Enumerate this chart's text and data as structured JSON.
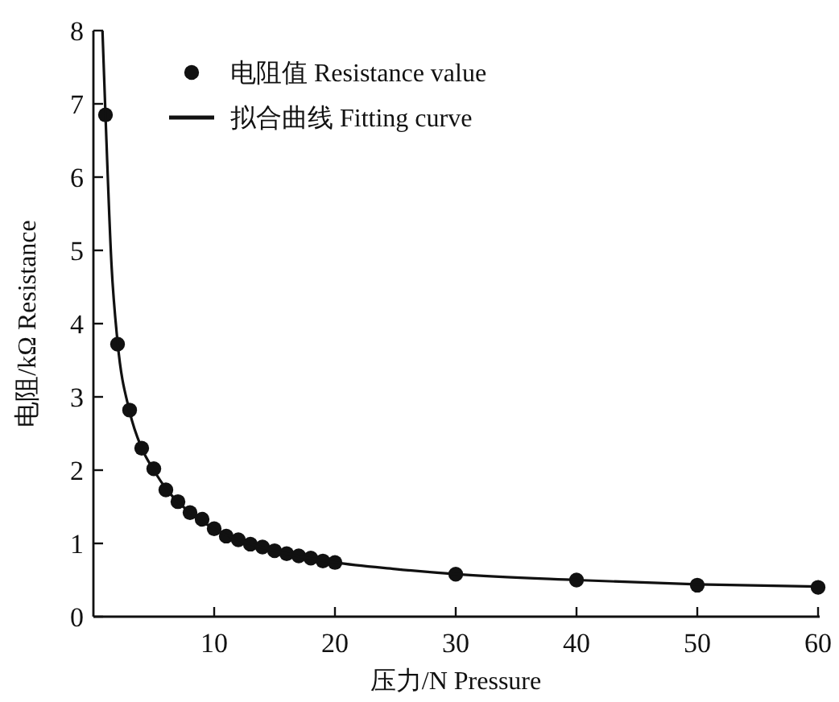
{
  "chart_data": {
    "type": "scatter",
    "xlabel": "压力/N  Pressure",
    "ylabel": "电阻/kΩ  Resistance",
    "xlim": [
      0,
      60
    ],
    "ylim": [
      0,
      8
    ],
    "xticks": [
      10,
      20,
      30,
      40,
      50,
      60
    ],
    "yticks": [
      0,
      1,
      2,
      3,
      4,
      5,
      6,
      7,
      8
    ],
    "grid": false,
    "legend": "top",
    "series": [
      {
        "name": "电阻值 Resistance value",
        "color": "#111111",
        "marker": "circle",
        "x": [
          1,
          2,
          3,
          4,
          5,
          6,
          7,
          8,
          9,
          10,
          11,
          12,
          13,
          14,
          15,
          16,
          17,
          18,
          19,
          20,
          30,
          40,
          50,
          60
        ],
        "values": [
          6.85,
          3.72,
          2.82,
          2.3,
          2.02,
          1.73,
          1.57,
          1.42,
          1.33,
          1.2,
          1.1,
          1.05,
          0.99,
          0.95,
          0.9,
          0.86,
          0.83,
          0.8,
          0.76,
          0.74,
          0.58,
          0.5,
          0.43,
          0.4
        ]
      },
      {
        "name": "拟合曲线 Fitting curve",
        "type": "line",
        "color": "#111111",
        "line_style": "solid",
        "marker": "none",
        "x": [
          0.75,
          1,
          1.5,
          2,
          3,
          4,
          5,
          6,
          8,
          10,
          12,
          15,
          20,
          25,
          30,
          40,
          50,
          60
        ],
        "values": [
          8,
          6.85,
          4.8,
          3.75,
          2.8,
          2.3,
          2.0,
          1.75,
          1.42,
          1.2,
          1.05,
          0.9,
          0.74,
          0.65,
          0.58,
          0.5,
          0.44,
          0.41
        ]
      }
    ]
  }
}
